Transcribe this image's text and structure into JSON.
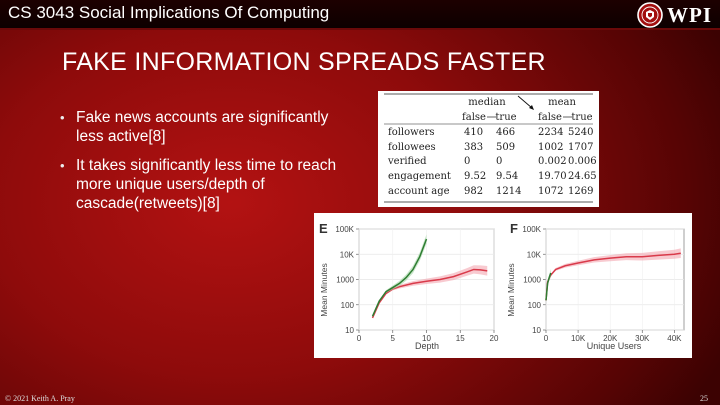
{
  "header": {
    "course_title": "CS 3043 Social Implications Of Computing",
    "logo_text": "WPI"
  },
  "slide": {
    "title": "FAKE INFORMATION SPREADS FASTER",
    "bullets": [
      "Fake news accounts are significantly less active[8]",
      "It takes significantly less time to reach more unique users/depth of cascade(retweets)[8]"
    ]
  },
  "table": {
    "group_headers": [
      "median",
      "mean"
    ],
    "sub_headers": [
      "false",
      "true",
      "false",
      "true"
    ],
    "rows": [
      {
        "label": "followers",
        "values": [
          "410",
          "466",
          "2234",
          "5240"
        ]
      },
      {
        "label": "followees",
        "values": [
          "383",
          "509",
          "1002",
          "1707"
        ]
      },
      {
        "label": "verified",
        "values": [
          "0",
          "0",
          "0.002",
          "0.006"
        ]
      },
      {
        "label": "engagement",
        "values": [
          "9.52",
          "9.54",
          "19.70",
          "24.65"
        ]
      },
      {
        "label": "account age",
        "values": [
          "982",
          "1214",
          "1072",
          "1269"
        ]
      }
    ]
  },
  "colors": {
    "false_series": "#d93a4a",
    "true_series": "#2e7d32",
    "false_band": "#f4a6b0",
    "true_band": "#a5d6a7"
  },
  "chart_data": [
    {
      "type": "line",
      "panel_label": "E",
      "xlabel": "Depth",
      "ylabel": "Mean Minutes",
      "log_y": true,
      "xlim": [
        0,
        20
      ],
      "ylim": [
        10,
        100000
      ],
      "x_ticks": [
        "0",
        "5",
        "10",
        "15",
        "20"
      ],
      "y_ticks": [
        "10",
        "100",
        "1000",
        "10K",
        "100K"
      ],
      "series": [
        {
          "key": "false",
          "x": [
            2,
            3,
            4,
            5,
            6,
            8,
            10,
            12,
            14,
            16,
            17,
            18,
            19
          ],
          "y": [
            30,
            120,
            280,
            420,
            520,
            700,
            850,
            1000,
            1300,
            2000,
            2500,
            2400,
            2200
          ]
        },
        {
          "key": "true",
          "x": [
            2,
            3,
            4,
            5,
            6,
            7,
            8,
            9,
            10
          ],
          "y": [
            35,
            140,
            330,
            480,
            700,
            1200,
            2500,
            8000,
            40000
          ]
        }
      ]
    },
    {
      "type": "line",
      "panel_label": "F",
      "xlabel": "Unique Users",
      "ylabel": "Mean Minutes",
      "log_y": true,
      "xlim": [
        0,
        43000
      ],
      "ylim": [
        10,
        100000
      ],
      "x_ticks": [
        "0",
        "10K",
        "20K",
        "30K",
        "40K"
      ],
      "y_ticks": [
        "10",
        "100",
        "1000",
        "10K",
        "100K"
      ],
      "series": [
        {
          "key": "false",
          "x": [
            0,
            500,
            1500,
            3000,
            6000,
            10000,
            15000,
            20000,
            25000,
            30000,
            35000,
            40000,
            42000
          ],
          "y": [
            150,
            800,
            1500,
            2500,
            3500,
            4500,
            6000,
            7000,
            8000,
            8000,
            9000,
            10000,
            11000
          ]
        },
        {
          "key": "true",
          "x": [
            0,
            500,
            1000,
            1500
          ],
          "y": [
            150,
            700,
            1200,
            1800
          ]
        }
      ]
    }
  ],
  "footer": {
    "copyright": "© 2021 Keith A. Pray",
    "page_number": "25"
  }
}
